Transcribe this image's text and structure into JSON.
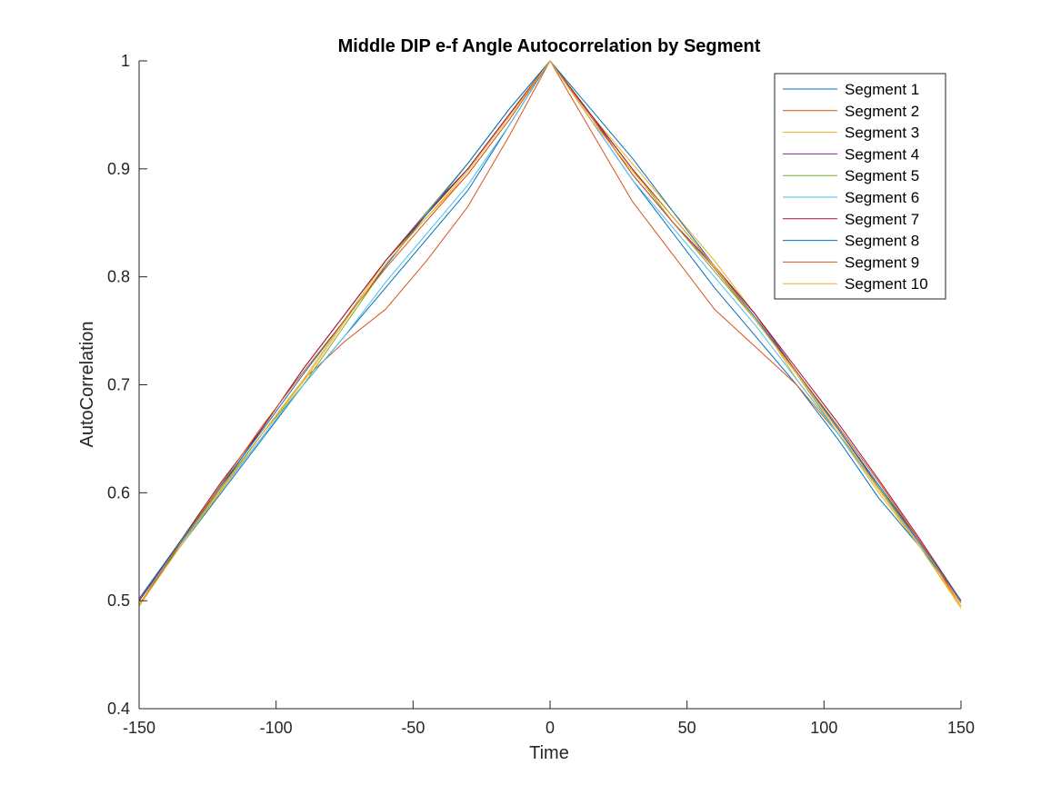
{
  "chart_data": {
    "type": "line",
    "title": "Middle DIP e-f Angle Autocorrelation by Segment",
    "xlabel": "Time",
    "ylabel": "AutoCorrelation",
    "xlim": [
      -150,
      150
    ],
    "ylim": [
      0.4,
      1.0
    ],
    "xticks": [
      "-150",
      "-100",
      "-50",
      "0",
      "50",
      "100",
      "150"
    ],
    "yticks": [
      "0.4",
      "0.5",
      "0.6",
      "0.7",
      "0.8",
      "0.9",
      "1"
    ],
    "grid": false,
    "legend_position": "top-right",
    "x": [
      -150,
      -135,
      -120,
      -105,
      -90,
      -75,
      -60,
      -45,
      -30,
      -15,
      0,
      15,
      30,
      45,
      60,
      75,
      90,
      105,
      120,
      135,
      150
    ],
    "series": [
      {
        "name": "Segment 1",
        "color": "#0072BD",
        "values": [
          0.5,
          0.55,
          0.6,
          0.65,
          0.7,
          0.745,
          0.79,
          0.835,
          0.88,
          0.94,
          1.0,
          0.945,
          0.89,
          0.84,
          0.79,
          0.745,
          0.7,
          0.65,
          0.595,
          0.55,
          0.5
        ]
      },
      {
        "name": "Segment 2",
        "color": "#D95319",
        "values": [
          0.495,
          0.555,
          0.605,
          0.655,
          0.705,
          0.74,
          0.77,
          0.815,
          0.865,
          0.93,
          1.0,
          0.935,
          0.87,
          0.82,
          0.77,
          0.735,
          0.7,
          0.655,
          0.605,
          0.555,
          0.495
        ]
      },
      {
        "name": "Segment 3",
        "color": "#EDB120",
        "values": [
          0.497,
          0.552,
          0.603,
          0.655,
          0.705,
          0.76,
          0.815,
          0.855,
          0.895,
          0.945,
          1.0,
          0.95,
          0.905,
          0.86,
          0.815,
          0.765,
          0.705,
          0.655,
          0.6,
          0.55,
          0.495
        ]
      },
      {
        "name": "Segment 4",
        "color": "#7E2F8E",
        "values": [
          0.5,
          0.553,
          0.605,
          0.66,
          0.715,
          0.765,
          0.815,
          0.86,
          0.9,
          0.95,
          1.0,
          0.95,
          0.895,
          0.85,
          0.81,
          0.765,
          0.712,
          0.66,
          0.605,
          0.553,
          0.5
        ]
      },
      {
        "name": "Segment 5",
        "color": "#77AC30",
        "values": [
          0.5,
          0.553,
          0.605,
          0.655,
          0.7,
          0.755,
          0.81,
          0.86,
          0.905,
          0.955,
          1.0,
          0.95,
          0.9,
          0.85,
          0.805,
          0.76,
          0.71,
          0.655,
          0.605,
          0.552,
          0.5
        ]
      },
      {
        "name": "Segment 6",
        "color": "#4DBEEE",
        "values": [
          0.5,
          0.552,
          0.602,
          0.652,
          0.7,
          0.745,
          0.795,
          0.84,
          0.885,
          0.94,
          1.0,
          0.945,
          0.89,
          0.845,
          0.8,
          0.755,
          0.705,
          0.655,
          0.603,
          0.552,
          0.5
        ]
      },
      {
        "name": "Segment 7",
        "color": "#A2142F",
        "values": [
          0.5,
          0.555,
          0.61,
          0.66,
          0.715,
          0.765,
          0.815,
          0.858,
          0.9,
          0.95,
          1.0,
          0.95,
          0.9,
          0.855,
          0.81,
          0.765,
          0.715,
          0.665,
          0.612,
          0.557,
          0.5
        ]
      },
      {
        "name": "Segment 8",
        "color": "#0072BD",
        "values": [
          0.502,
          0.555,
          0.607,
          0.658,
          0.71,
          0.76,
          0.81,
          0.858,
          0.905,
          0.955,
          1.0,
          0.955,
          0.91,
          0.86,
          0.81,
          0.762,
          0.712,
          0.66,
          0.607,
          0.555,
          0.5
        ]
      },
      {
        "name": "Segment 9",
        "color": "#D95319",
        "values": [
          0.495,
          0.553,
          0.608,
          0.662,
          0.712,
          0.76,
          0.808,
          0.852,
          0.895,
          0.945,
          1.0,
          0.948,
          0.895,
          0.85,
          0.808,
          0.76,
          0.712,
          0.662,
          0.61,
          0.555,
          0.498
        ]
      },
      {
        "name": "Segment 10",
        "color": "#EDB120",
        "values": [
          0.495,
          0.55,
          0.602,
          0.655,
          0.703,
          0.758,
          0.812,
          0.855,
          0.898,
          0.948,
          1.0,
          0.945,
          0.898,
          0.855,
          0.81,
          0.76,
          0.71,
          0.658,
          0.603,
          0.55,
          0.493
        ]
      }
    ]
  }
}
